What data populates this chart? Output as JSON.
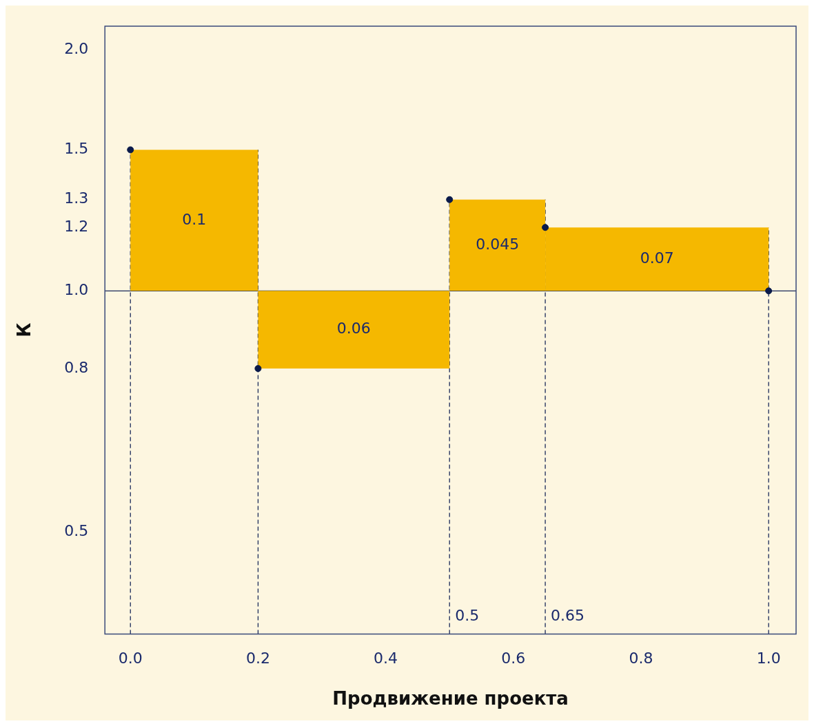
{
  "chart_data": {
    "type": "histogram",
    "xlabel": "Продвижение проекта",
    "ylabel": "К",
    "bins": [
      0,
      0.2,
      0.5,
      0.65,
      1.0
    ],
    "base": [
      1,
      1,
      1,
      1
    ],
    "values": [
      0.5,
      -0.2,
      0.3,
      0.2
    ],
    "color": "#f5b800",
    "series": [
      {
        "type": "scatter",
        "x": [
          0,
          0.2,
          0.5,
          0.65,
          1.0
        ],
        "values": [
          1.5,
          0.8,
          1.3,
          1.2,
          1.0
        ],
        "color": "#0a1a4a",
        "marker": "circle"
      }
    ],
    "log": "y",
    "grid": false,
    "legend": false,
    "xlim": [
      -0.04,
      1.043
    ],
    "ylim": [
      0.373,
      2.14
    ],
    "xticks": [
      {
        "value": 0,
        "label": "0.0"
      },
      0.2,
      0.4,
      0.6,
      0.8,
      {
        "value": 1,
        "label": "1.0"
      }
    ],
    "yticks": [
      0.5,
      0.8,
      {
        "value": 1,
        "label": "1.0"
      },
      1.2,
      1.3,
      1.5,
      {
        "value": 2,
        "label": "2.0"
      }
    ],
    "ref_lines": [
      {
        "axis": "y",
        "value": 1,
        "color": "#1a2a5a",
        "line_style": "solid"
      },
      {
        "axis": "x",
        "value": 0,
        "color": "#1a2a5a",
        "line_style": "dashed"
      },
      {
        "axis": "x",
        "value": 0.2,
        "color": "#1a2a5a",
        "line_style": "dashed"
      },
      {
        "axis": "x",
        "value": 0.5,
        "label": "0.5",
        "color": "#1a2a5a",
        "line_style": "dashed"
      },
      {
        "axis": "x",
        "value": 0.65,
        "label": "0.65",
        "color": "#1a2a5a",
        "line_style": "dashed"
      },
      {
        "axis": "x",
        "value": 1,
        "color": "#1a2a5a",
        "line_style": "dashed"
      }
    ],
    "annotations": [
      "0.1",
      "0.06",
      "0.045",
      "0.07"
    ]
  }
}
